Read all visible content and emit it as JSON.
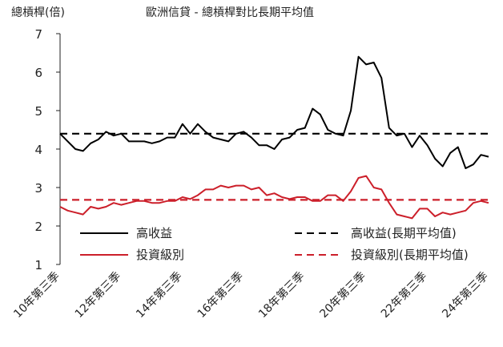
{
  "chart_data": {
    "type": "line",
    "title": "歐洲信貸 - 總槓桿對比長期平均值",
    "ylabel": "總槓桿(倍)",
    "ylim": [
      1,
      7
    ],
    "yticks": [
      1,
      2,
      3,
      4,
      5,
      6,
      7
    ],
    "x_tick_labels": [
      "10年第三季",
      "12年第三季",
      "14年第三季",
      "16年第三季",
      "18年第三季",
      "20年第三季",
      "22年第三季",
      "24年第三季"
    ],
    "grid": false,
    "legend_position": "bottom-inside",
    "series": [
      {
        "name": "高收益",
        "color": "#000000",
        "style": "solid",
        "values": [
          4.4,
          4.2,
          4.0,
          3.95,
          4.15,
          4.25,
          4.45,
          4.35,
          4.4,
          4.2,
          4.2,
          4.2,
          4.15,
          4.2,
          4.3,
          4.3,
          4.65,
          4.4,
          4.65,
          4.45,
          4.3,
          4.25,
          4.2,
          4.4,
          4.45,
          4.3,
          4.1,
          4.1,
          4.0,
          4.25,
          4.3,
          4.5,
          4.55,
          5.05,
          4.9,
          4.5,
          4.4,
          4.35,
          5.0,
          6.4,
          6.2,
          6.25,
          5.85,
          4.55,
          4.35,
          4.4,
          4.05,
          4.35,
          4.1,
          3.75,
          3.55,
          3.9,
          4.05,
          3.5,
          3.6,
          3.85,
          3.8
        ]
      },
      {
        "name": "高收益(長期平均值)",
        "color": "#000000",
        "style": "dashed",
        "values": [
          4.4,
          4.4
        ]
      },
      {
        "name": "投資級別",
        "color": "#cc1f2a",
        "style": "solid",
        "values": [
          2.5,
          2.4,
          2.35,
          2.3,
          2.5,
          2.45,
          2.5,
          2.6,
          2.55,
          2.6,
          2.65,
          2.65,
          2.6,
          2.6,
          2.65,
          2.65,
          2.75,
          2.7,
          2.8,
          2.95,
          2.95,
          3.05,
          3.0,
          3.05,
          3.05,
          2.95,
          3.0,
          2.8,
          2.85,
          2.75,
          2.7,
          2.75,
          2.75,
          2.65,
          2.65,
          2.8,
          2.8,
          2.65,
          2.9,
          3.25,
          3.3,
          3.0,
          2.95,
          2.6,
          2.3,
          2.25,
          2.2,
          2.45,
          2.45,
          2.25,
          2.35,
          2.3,
          2.35,
          2.4,
          2.6,
          2.65,
          2.6
        ]
      },
      {
        "name": "投資級別(長期平均值)",
        "color": "#cc1f2a",
        "style": "dashed",
        "values": [
          2.68,
          2.68
        ]
      }
    ]
  }
}
